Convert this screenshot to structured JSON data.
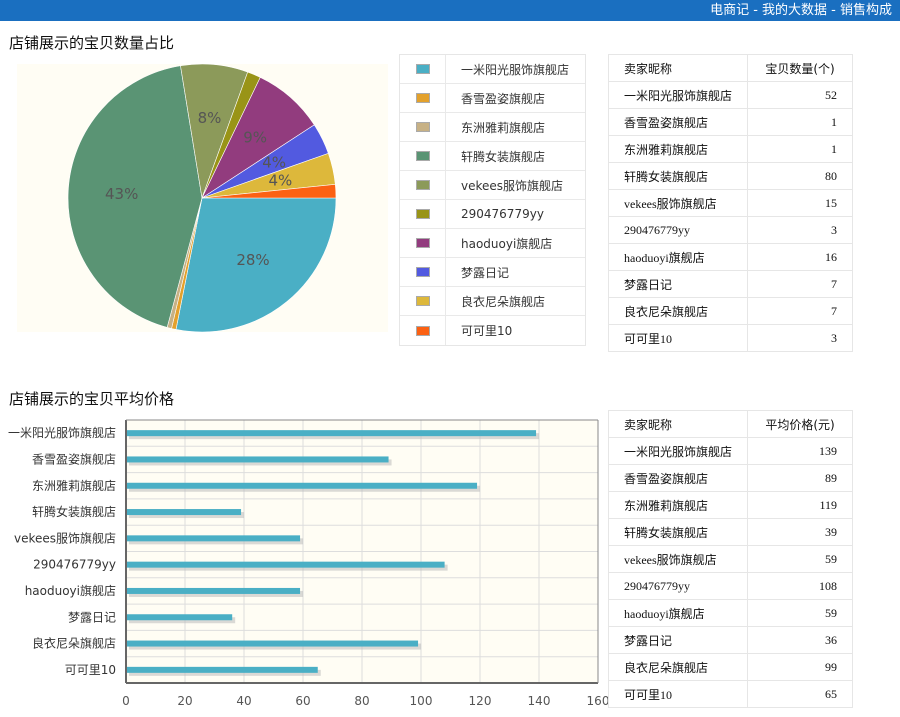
{
  "header": {
    "title": "电商记 - 我的大数据 - 销售构成"
  },
  "pie_section": {
    "title": "店铺展示的宝贝数量占比",
    "table": {
      "col_seller": "卖家昵称",
      "col_value": "宝贝数量(个)",
      "rows": [
        {
          "name": "一米阳光服饰旗舰店",
          "value": "52"
        },
        {
          "name": "香雪盈姿旗舰店",
          "value": "1"
        },
        {
          "name": "东洲雅莉旗舰店",
          "value": "1"
        },
        {
          "name": "轩腾女装旗舰店",
          "value": "80"
        },
        {
          "name": "vekees服饰旗舰店",
          "value": "15"
        },
        {
          "name": "290476779yy",
          "value": "3"
        },
        {
          "name": "haoduoyi旗舰店",
          "value": "16"
        },
        {
          "name": "梦露日记",
          "value": "7"
        },
        {
          "name": "良衣尼朵旗舰店",
          "value": "7"
        },
        {
          "name": "可可里10",
          "value": "3"
        }
      ]
    }
  },
  "bar_section": {
    "title": "店铺展示的宝贝平均价格",
    "table": {
      "col_seller": "卖家昵称",
      "col_value": "平均价格(元)",
      "rows": [
        {
          "name": "一米阳光服饰旗舰店",
          "value": "139"
        },
        {
          "name": "香雪盈姿旗舰店",
          "value": "89"
        },
        {
          "name": "东洲雅莉旗舰店",
          "value": "119"
        },
        {
          "name": "轩腾女装旗舰店",
          "value": "39"
        },
        {
          "name": "vekees服饰旗舰店",
          "value": "59"
        },
        {
          "name": "290476779yy",
          "value": "108"
        },
        {
          "name": "haoduoyi旗舰店",
          "value": "59"
        },
        {
          "name": "梦露日记",
          "value": "36"
        },
        {
          "name": "良衣尼朵旗舰店",
          "value": "99"
        },
        {
          "name": "可可里10",
          "value": "65"
        }
      ]
    }
  },
  "chart_data": [
    {
      "type": "pie",
      "title": "店铺展示的宝贝数量占比",
      "categories": [
        "一米阳光服饰旗舰店",
        "香雪盈姿旗舰店",
        "东洲雅莉旗舰店",
        "轩腾女装旗舰店",
        "vekees服饰旗舰店",
        "290476779yy",
        "haoduoyi旗舰店",
        "梦露日记",
        "良衣尼朵旗舰店",
        "可可里10"
      ],
      "values": [
        52,
        1,
        1,
        80,
        15,
        3,
        16,
        7,
        7,
        3
      ],
      "colors": [
        "#4aafc5",
        "#e3a12c",
        "#c7b185",
        "#5a9474",
        "#8c9a5a",
        "#999417",
        "#923c7e",
        "#525ae0",
        "#ddb83b",
        "#fb6113"
      ],
      "slice_labels": [
        "28%",
        "",
        "",
        "43%",
        "8%",
        "",
        "9%",
        "4%",
        "4%",
        ""
      ],
      "legend": "right"
    },
    {
      "type": "bar",
      "orientation": "horizontal",
      "title": "店铺展示的宝贝平均价格",
      "categories": [
        "一米阳光服饰旗舰店",
        "香雪盈姿旗舰店",
        "东洲雅莉旗舰店",
        "轩腾女装旗舰店",
        "vekees服饰旗舰店",
        "290476779yy",
        "haoduoyi旗舰店",
        "梦露日记",
        "良衣尼朵旗舰店",
        "可可里10"
      ],
      "values": [
        139,
        89,
        119,
        39,
        59,
        108,
        59,
        36,
        99,
        65
      ],
      "xlim": [
        0,
        160
      ],
      "xticks": [
        "0",
        "20",
        "40",
        "60",
        "80",
        "100",
        "120",
        "140",
        "160"
      ],
      "grid": true,
      "color": "#4aafc5"
    }
  ]
}
